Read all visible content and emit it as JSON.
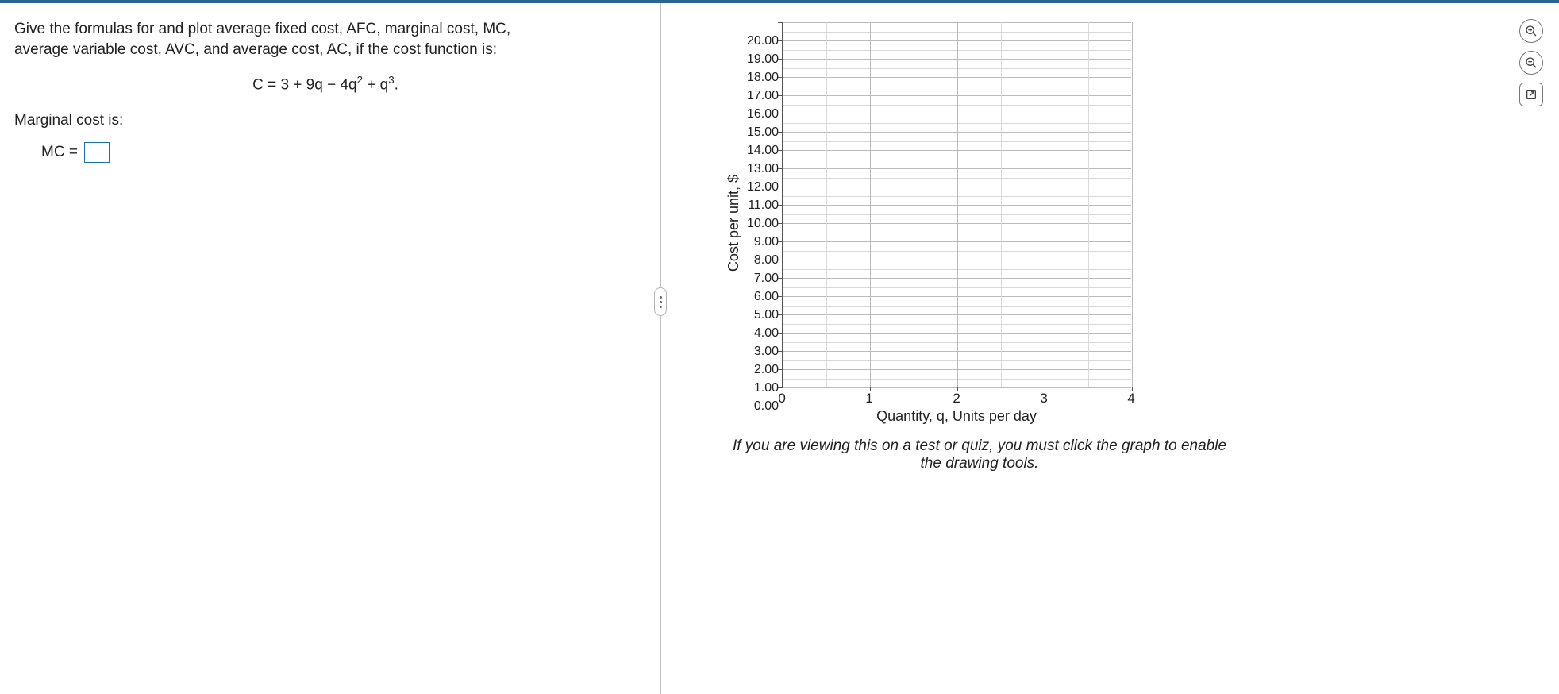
{
  "left": {
    "problem_line1": "Give the formulas for and plot average fixed cost, AFC, marginal cost, MC,",
    "problem_line2": "average variable cost, AVC, and average cost, AC, if the cost function is:",
    "formula_prefix": "C = 3 + 9q − 4q",
    "formula_sup1": "2",
    "formula_mid": " + q",
    "formula_sup2": "3",
    "formula_suffix": ".",
    "mc_label": "Marginal cost is:",
    "mc_eq": "MC ="
  },
  "chart": {
    "type": "empty-grid",
    "y_title": "Cost per unit, $",
    "x_title": "Quantity, q, Units per day",
    "y_ticks": [
      "20.00",
      "19.00",
      "18.00",
      "17.00",
      "16.00",
      "15.00",
      "14.00",
      "13.00",
      "12.00",
      "11.00",
      "10.00",
      "9.00",
      "8.00",
      "7.00",
      "6.00",
      "5.00",
      "4.00",
      "3.00",
      "2.00",
      "1.00",
      "0.00"
    ],
    "x_ticks": [
      "0",
      "1",
      "2",
      "3",
      "4"
    ],
    "ylim": [
      0,
      20
    ],
    "xlim": [
      0,
      4
    ],
    "y_major_step": 1,
    "x_major_step": 1,
    "grid_color": "#bbbbbb",
    "minor_grid_color": "#d9d9d9",
    "axis_color": "#555555",
    "background_color": "#ffffff",
    "tick_fontsize": 16,
    "axis_title_fontsize": 18
  },
  "hint": "If you are viewing this on a test or quiz, you must click the graph to enable the drawing tools.",
  "tools": {
    "zoom_in": "zoom-in-icon",
    "zoom_out": "zoom-out-icon",
    "popout": "popout-icon"
  }
}
